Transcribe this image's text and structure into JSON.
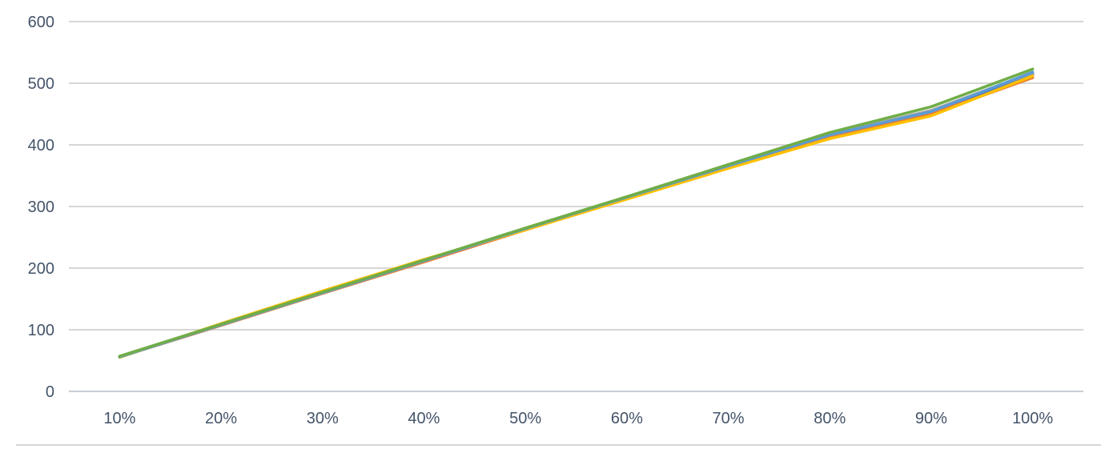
{
  "window": {
    "background_color": "#FFFFFF"
  },
  "chart": {
    "text_color": "#44546A",
    "grid_color": "#D6D6D6",
    "axis_color": "#C9CED4",
    "divider_color": "#D6D6D6",
    "y_tick_labels": [
      "0",
      "100",
      "200",
      "300",
      "400",
      "500",
      "600"
    ],
    "x_tick_labels": [
      "10%",
      "20%",
      "30%",
      "40%",
      "50%",
      "60%",
      "70%",
      "80%",
      "90%",
      "100%"
    ]
  },
  "chart_data": {
    "type": "line",
    "title": "",
    "xlabel": "",
    "ylabel": "",
    "categories": [
      "10%",
      "20%",
      "30%",
      "40%",
      "50%",
      "60%",
      "70%",
      "80%",
      "90%",
      "100%"
    ],
    "ylim": [
      0,
      600
    ],
    "ytick_step": 100,
    "grid": true,
    "legend": "none",
    "series": [
      {
        "name": "series-blue",
        "color": "#4472C4",
        "values": [
          56,
          108,
          160,
          211,
          263,
          314,
          366,
          415,
          452,
          514
        ]
      },
      {
        "name": "series-orange",
        "color": "#ED7D31",
        "values": [
          56,
          107,
          159,
          210,
          262,
          313,
          364,
          413,
          450,
          509
        ]
      },
      {
        "name": "series-gray",
        "color": "#A5A5A5",
        "values": [
          56,
          108,
          160,
          212,
          263,
          315,
          366,
          417,
          456,
          517
        ]
      },
      {
        "name": "series-yellow",
        "color": "#FFC000",
        "values": [
          55,
          110,
          163,
          214,
          262,
          312,
          362,
          410,
          447,
          512
        ]
      },
      {
        "name": "series-light-blue",
        "color": "#5B9BD5",
        "values": [
          56,
          108,
          160,
          212,
          264,
          315,
          366,
          416,
          454,
          518
        ]
      },
      {
        "name": "series-green",
        "color": "#70AD47",
        "values": [
          57,
          109,
          161,
          213,
          265,
          316,
          368,
          420,
          462,
          523
        ]
      }
    ]
  }
}
